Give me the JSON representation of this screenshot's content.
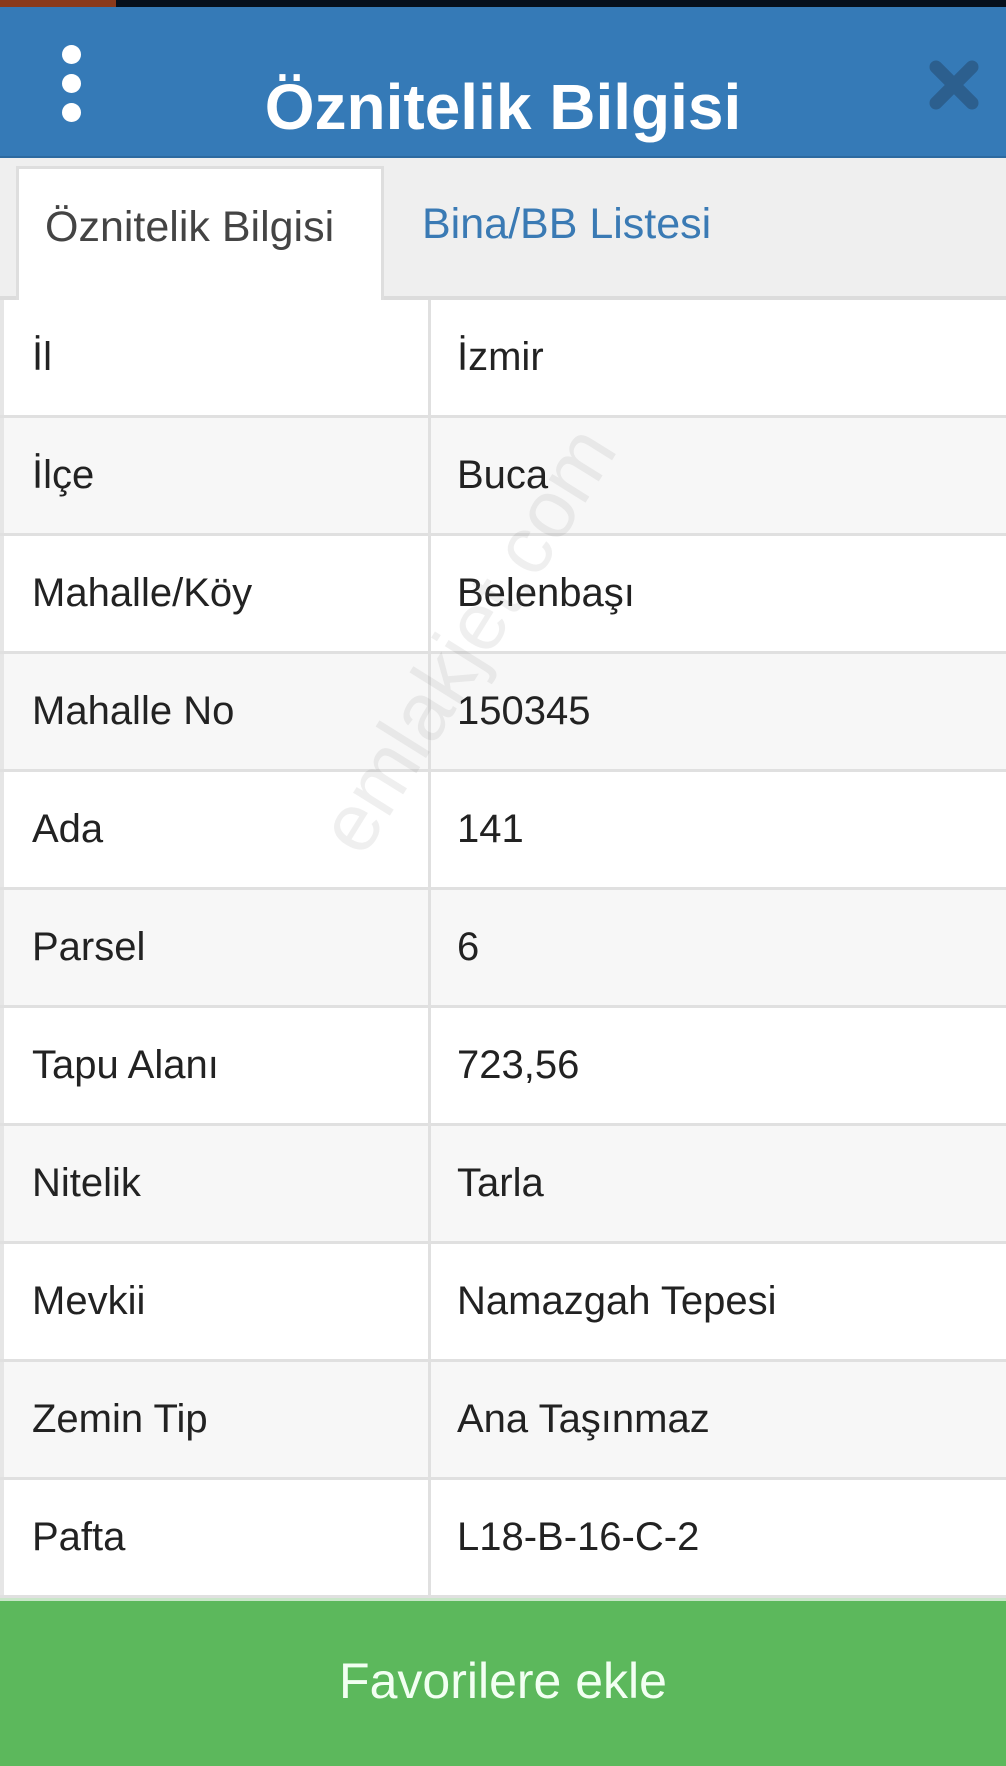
{
  "header": {
    "title": "Öznitelik Bilgisi",
    "menu_icon": "more-vertical-icon",
    "close_icon": "close-icon"
  },
  "tabs": [
    {
      "label": "Öznitelik Bilgisi",
      "active": true
    },
    {
      "label": "Bina/BB Listesi",
      "active": false
    }
  ],
  "attributes": [
    {
      "key": "İl",
      "value": "İzmir"
    },
    {
      "key": "İlçe",
      "value": "Buca"
    },
    {
      "key": "Mahalle/Köy",
      "value": "Belenbaşı"
    },
    {
      "key": "Mahalle No",
      "value": "150345"
    },
    {
      "key": "Ada",
      "value": "141"
    },
    {
      "key": "Parsel",
      "value": "6"
    },
    {
      "key": "Tapu Alanı",
      "value": "723,56"
    },
    {
      "key": "Nitelik",
      "value": "Tarla"
    },
    {
      "key": "Mevkii",
      "value": "Namazgah Tepesi"
    },
    {
      "key": "Zemin Tip",
      "value": "Ana Taşınmaz"
    },
    {
      "key": "Pafta",
      "value": "L18-B-16-C-2"
    }
  ],
  "footer": {
    "favorite_label": "Favorilere ekle"
  },
  "watermark": "emlakjet.com",
  "colors": {
    "header": "#357ab7",
    "tab_link": "#3a7ab4",
    "favorite_button": "#5cb85c"
  }
}
